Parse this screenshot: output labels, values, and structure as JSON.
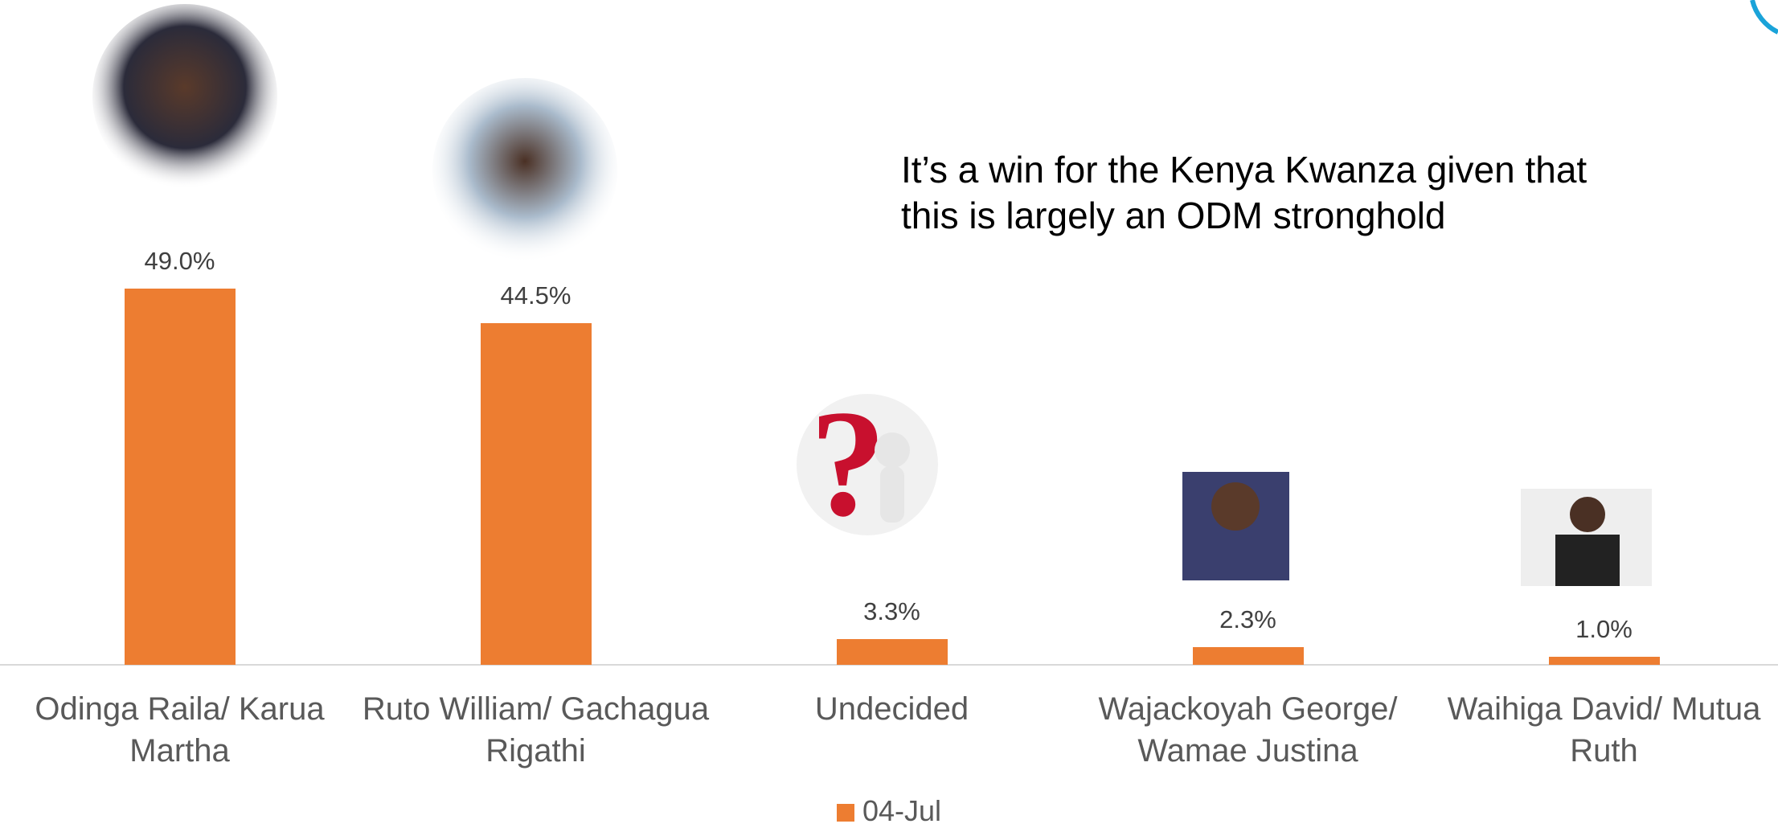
{
  "chart_data": {
    "type": "bar",
    "annotation": "It’s a win for the Kenya Kwanza given that this is largely an ODM stronghold",
    "categories": [
      "Odinga Raila/ Karua Martha",
      "Ruto William/ Gachagua Rigathi",
      "Undecided",
      "Wajackoyah George/ Wamae Justina",
      "Waihiga David/ Mutua Ruth"
    ],
    "series": [
      {
        "name": "04-Jul",
        "color": "#ed7d31",
        "values": [
          49.0,
          44.5,
          3.3,
          2.3,
          1.0
        ],
        "value_labels": [
          "49.0%",
          "44.5%",
          "3.3%",
          "2.3%",
          "1.0%"
        ]
      }
    ],
    "legend": "bottom"
  }
}
